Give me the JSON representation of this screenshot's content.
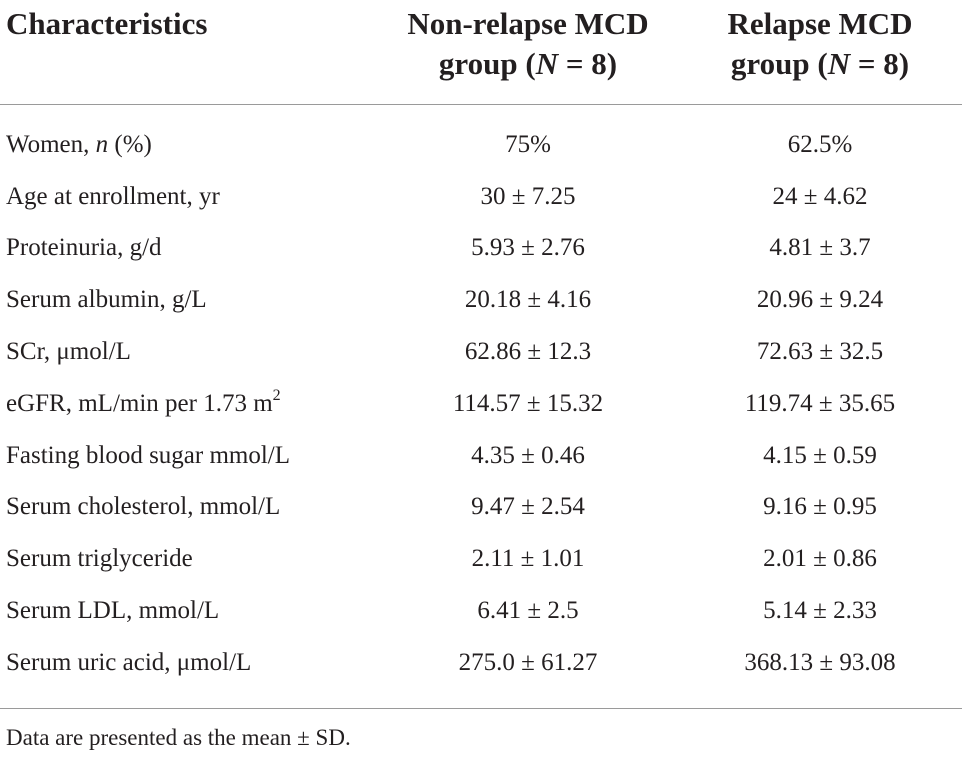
{
  "table": {
    "headers": {
      "characteristics": "Characteristics",
      "non_relapse": {
        "line1": "Non-relapse MCD",
        "line2_prefix": "group (",
        "n_symbol": "N",
        "line2_suffix": " = 8)"
      },
      "relapse": {
        "line1": "Relapse MCD",
        "line2_prefix": "group (",
        "n_symbol": "N",
        "line2_suffix": " = 8)"
      }
    },
    "rows": [
      {
        "label": "Women, ",
        "label_italic": "n",
        "label_after": " (%)",
        "non_relapse": "75%",
        "relapse": "62.5%"
      },
      {
        "label": "Age at enrollment, yr",
        "non_relapse": "30 ± 7.25",
        "relapse": "24 ± 4.62"
      },
      {
        "label": "Proteinuria, g/d",
        "non_relapse": "5.93 ± 2.76",
        "relapse": "4.81 ± 3.7"
      },
      {
        "label": "Serum albumin, g/L",
        "non_relapse": "20.18 ± 4.16",
        "relapse": "20.96 ± 9.24"
      },
      {
        "label": "SCr, μmol/L",
        "non_relapse": "62.86 ± 12.3",
        "relapse": "72.63 ± 32.5"
      },
      {
        "label": "eGFR, mL/min per 1.73 m",
        "label_sup": "2",
        "non_relapse": "114.57 ± 15.32",
        "relapse": "119.74 ± 35.65"
      },
      {
        "label": "Fasting blood sugar mmol/L",
        "non_relapse": "4.35 ± 0.46",
        "relapse": "4.15 ± 0.59"
      },
      {
        "label": "Serum cholesterol, mmol/L",
        "non_relapse": "9.47 ± 2.54",
        "relapse": "9.16 ± 0.95"
      },
      {
        "label": "Serum triglyceride",
        "non_relapse": "2.11 ± 1.01",
        "relapse": "2.01 ± 0.86"
      },
      {
        "label": "Serum LDL, mmol/L",
        "non_relapse": "6.41 ± 2.5",
        "relapse": "5.14 ± 2.33"
      },
      {
        "label": "Serum uric acid, μmol/L",
        "non_relapse": "275.0 ± 61.27",
        "relapse": "368.13 ± 93.08"
      }
    ]
  },
  "footnote": "Data are presented as the mean ± SD."
}
